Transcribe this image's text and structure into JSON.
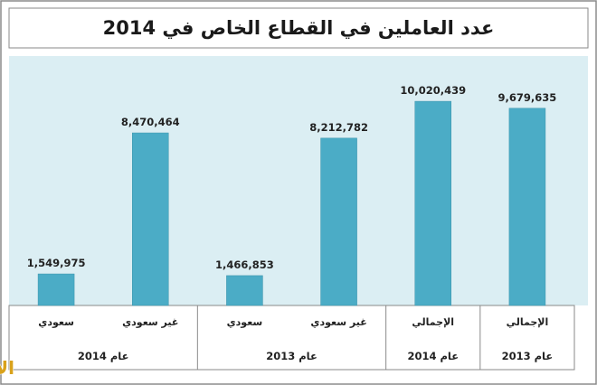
{
  "title": "عدد العاملين في القطاع الخاص في 2014",
  "logo": "الاقتصادية",
  "colors": {
    "bar": "#4bacc6",
    "plot_bg": "#dbeef3",
    "frame": "#8a8a8a",
    "logo": "#d9a21c"
  },
  "chart_data": {
    "type": "bar",
    "title": "عدد العاملين في القطاع الخاص في 2014",
    "categories": [
      "سعودي",
      "غير سعودي",
      "سعودي",
      "غير سعودي",
      "الإجمالي",
      "الإجمالي"
    ],
    "groups": [
      "عام 2014",
      "عام 2013",
      "عام 2014",
      "عام 2013"
    ],
    "group_sizes": [
      2,
      2,
      1,
      1
    ],
    "values": [
      1549975,
      8470464,
      1466853,
      8212782,
      10020439,
      9679635
    ],
    "value_labels": [
      "1,549,975",
      "8,470,464",
      "1,466,853",
      "8,212,782",
      "10,020,439",
      "9,679,635"
    ],
    "ylim": [
      0,
      11000000
    ],
    "grid": false,
    "legend": "none"
  }
}
